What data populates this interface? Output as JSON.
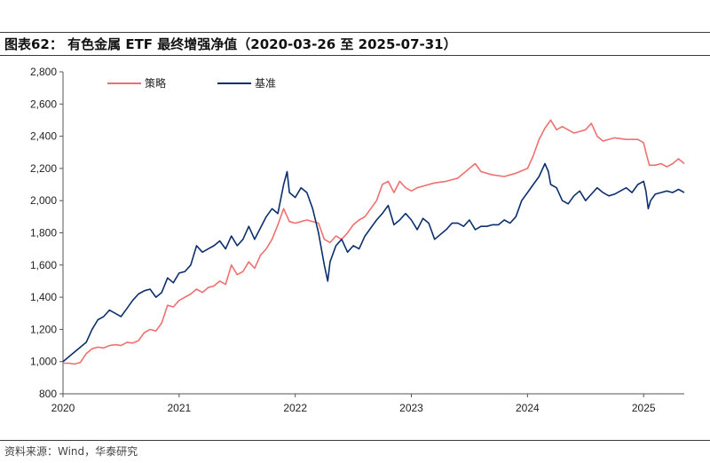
{
  "header": {
    "title": "图表62： 有色金属 ETF 最终增强净值（2020-03-26 至 2025-07-31）"
  },
  "footer": {
    "source": "资料来源：Wind，华泰研究"
  },
  "chart_data": {
    "type": "line",
    "title": "有色金属 ETF 最终增强净值（2020-03-26 至 2025-07-31）",
    "xlabel": "",
    "ylabel": "",
    "xlim": [
      2020.0,
      2025.35
    ],
    "ylim": [
      800,
      2800
    ],
    "y_ticks": [
      "800",
      "1,000",
      "1,200",
      "1,400",
      "1,600",
      "1,800",
      "2,000",
      "2,200",
      "2,400",
      "2,600",
      "2,800"
    ],
    "y_tick_values": [
      800,
      1000,
      1200,
      1400,
      1600,
      1800,
      2000,
      2200,
      2400,
      2600,
      2800
    ],
    "x_ticks": [
      "2020",
      "2021",
      "2022",
      "2023",
      "2024",
      "2025"
    ],
    "x_tick_values": [
      2020,
      2021,
      2022,
      2023,
      2024,
      2025
    ],
    "legend_position": "top-left",
    "colors": {
      "strategy": "#F07070",
      "benchmark": "#0B2F6E",
      "axis": "#555555"
    },
    "series": [
      {
        "name": "策略",
        "color": "#F07070",
        "points": [
          [
            2020.0,
            990
          ],
          [
            2020.05,
            990
          ],
          [
            2020.1,
            985
          ],
          [
            2020.15,
            995
          ],
          [
            2020.2,
            1050
          ],
          [
            2020.25,
            1080
          ],
          [
            2020.3,
            1090
          ],
          [
            2020.35,
            1085
          ],
          [
            2020.4,
            1100
          ],
          [
            2020.45,
            1105
          ],
          [
            2020.5,
            1100
          ],
          [
            2020.55,
            1120
          ],
          [
            2020.6,
            1115
          ],
          [
            2020.65,
            1130
          ],
          [
            2020.7,
            1180
          ],
          [
            2020.75,
            1200
          ],
          [
            2020.8,
            1190
          ],
          [
            2020.85,
            1240
          ],
          [
            2020.9,
            1350
          ],
          [
            2020.95,
            1340
          ],
          [
            2021.0,
            1380
          ],
          [
            2021.05,
            1400
          ],
          [
            2021.1,
            1420
          ],
          [
            2021.15,
            1450
          ],
          [
            2021.2,
            1430
          ],
          [
            2021.25,
            1460
          ],
          [
            2021.3,
            1470
          ],
          [
            2021.35,
            1500
          ],
          [
            2021.4,
            1480
          ],
          [
            2021.45,
            1600
          ],
          [
            2021.5,
            1540
          ],
          [
            2021.55,
            1560
          ],
          [
            2021.6,
            1620
          ],
          [
            2021.65,
            1580
          ],
          [
            2021.7,
            1660
          ],
          [
            2021.75,
            1700
          ],
          [
            2021.8,
            1760
          ],
          [
            2021.85,
            1850
          ],
          [
            2021.9,
            1950
          ],
          [
            2021.95,
            1870
          ],
          [
            2022.0,
            1860
          ],
          [
            2022.05,
            1870
          ],
          [
            2022.1,
            1880
          ],
          [
            2022.15,
            1870
          ],
          [
            2022.2,
            1860
          ],
          [
            2022.25,
            1760
          ],
          [
            2022.3,
            1740
          ],
          [
            2022.35,
            1780
          ],
          [
            2022.4,
            1760
          ],
          [
            2022.45,
            1800
          ],
          [
            2022.5,
            1850
          ],
          [
            2022.55,
            1880
          ],
          [
            2022.6,
            1900
          ],
          [
            2022.65,
            1950
          ],
          [
            2022.7,
            2000
          ],
          [
            2022.75,
            2100
          ],
          [
            2022.8,
            2120
          ],
          [
            2022.85,
            2050
          ],
          [
            2022.9,
            2120
          ],
          [
            2022.95,
            2080
          ],
          [
            2023.0,
            2060
          ],
          [
            2023.05,
            2080
          ],
          [
            2023.1,
            2090
          ],
          [
            2023.2,
            2110
          ],
          [
            2023.3,
            2120
          ],
          [
            2023.4,
            2140
          ],
          [
            2023.5,
            2200
          ],
          [
            2023.55,
            2230
          ],
          [
            2023.6,
            2180
          ],
          [
            2023.7,
            2160
          ],
          [
            2023.8,
            2150
          ],
          [
            2023.9,
            2170
          ],
          [
            2024.0,
            2200
          ],
          [
            2024.05,
            2280
          ],
          [
            2024.1,
            2380
          ],
          [
            2024.15,
            2450
          ],
          [
            2024.2,
            2500
          ],
          [
            2024.25,
            2440
          ],
          [
            2024.3,
            2460
          ],
          [
            2024.4,
            2420
          ],
          [
            2024.5,
            2440
          ],
          [
            2024.55,
            2480
          ],
          [
            2024.6,
            2400
          ],
          [
            2024.65,
            2370
          ],
          [
            2024.75,
            2390
          ],
          [
            2024.85,
            2380
          ],
          [
            2024.95,
            2380
          ],
          [
            2025.0,
            2360
          ],
          [
            2025.02,
            2300
          ],
          [
            2025.05,
            2220
          ],
          [
            2025.1,
            2220
          ],
          [
            2025.15,
            2230
          ],
          [
            2025.2,
            2210
          ],
          [
            2025.25,
            2230
          ],
          [
            2025.3,
            2260
          ],
          [
            2025.35,
            2230
          ]
        ]
      },
      {
        "name": "基准",
        "color": "#0B2F6E",
        "points": [
          [
            2020.0,
            1000
          ],
          [
            2020.05,
            1030
          ],
          [
            2020.1,
            1060
          ],
          [
            2020.15,
            1090
          ],
          [
            2020.2,
            1120
          ],
          [
            2020.25,
            1200
          ],
          [
            2020.3,
            1260
          ],
          [
            2020.35,
            1280
          ],
          [
            2020.4,
            1320
          ],
          [
            2020.45,
            1300
          ],
          [
            2020.5,
            1280
          ],
          [
            2020.55,
            1330
          ],
          [
            2020.6,
            1380
          ],
          [
            2020.65,
            1420
          ],
          [
            2020.7,
            1440
          ],
          [
            2020.75,
            1450
          ],
          [
            2020.8,
            1400
          ],
          [
            2020.85,
            1430
          ],
          [
            2020.9,
            1520
          ],
          [
            2020.95,
            1490
          ],
          [
            2021.0,
            1550
          ],
          [
            2021.05,
            1560
          ],
          [
            2021.1,
            1600
          ],
          [
            2021.15,
            1720
          ],
          [
            2021.2,
            1680
          ],
          [
            2021.25,
            1700
          ],
          [
            2021.3,
            1720
          ],
          [
            2021.35,
            1750
          ],
          [
            2021.4,
            1700
          ],
          [
            2021.45,
            1780
          ],
          [
            2021.5,
            1720
          ],
          [
            2021.55,
            1760
          ],
          [
            2021.6,
            1840
          ],
          [
            2021.65,
            1760
          ],
          [
            2021.7,
            1830
          ],
          [
            2021.75,
            1900
          ],
          [
            2021.8,
            1950
          ],
          [
            2021.85,
            1920
          ],
          [
            2021.9,
            2100
          ],
          [
            2021.93,
            2180
          ],
          [
            2021.95,
            2050
          ],
          [
            2022.0,
            2020
          ],
          [
            2022.05,
            2080
          ],
          [
            2022.1,
            2050
          ],
          [
            2022.15,
            1950
          ],
          [
            2022.2,
            1800
          ],
          [
            2022.25,
            1600
          ],
          [
            2022.28,
            1500
          ],
          [
            2022.3,
            1620
          ],
          [
            2022.35,
            1720
          ],
          [
            2022.4,
            1760
          ],
          [
            2022.45,
            1680
          ],
          [
            2022.5,
            1720
          ],
          [
            2022.55,
            1700
          ],
          [
            2022.6,
            1780
          ],
          [
            2022.65,
            1830
          ],
          [
            2022.7,
            1880
          ],
          [
            2022.75,
            1920
          ],
          [
            2022.8,
            1970
          ],
          [
            2022.85,
            1850
          ],
          [
            2022.9,
            1880
          ],
          [
            2022.95,
            1920
          ],
          [
            2023.0,
            1880
          ],
          [
            2023.05,
            1820
          ],
          [
            2023.1,
            1890
          ],
          [
            2023.15,
            1860
          ],
          [
            2023.2,
            1760
          ],
          [
            2023.25,
            1790
          ],
          [
            2023.3,
            1820
          ],
          [
            2023.35,
            1860
          ],
          [
            2023.4,
            1860
          ],
          [
            2023.45,
            1840
          ],
          [
            2023.5,
            1880
          ],
          [
            2023.55,
            1820
          ],
          [
            2023.6,
            1840
          ],
          [
            2023.65,
            1840
          ],
          [
            2023.7,
            1850
          ],
          [
            2023.75,
            1850
          ],
          [
            2023.8,
            1880
          ],
          [
            2023.85,
            1860
          ],
          [
            2023.9,
            1900
          ],
          [
            2023.95,
            2000
          ],
          [
            2024.0,
            2050
          ],
          [
            2024.05,
            2100
          ],
          [
            2024.1,
            2150
          ],
          [
            2024.15,
            2230
          ],
          [
            2024.18,
            2180
          ],
          [
            2024.2,
            2100
          ],
          [
            2024.25,
            2080
          ],
          [
            2024.3,
            2000
          ],
          [
            2024.35,
            1980
          ],
          [
            2024.4,
            2030
          ],
          [
            2024.45,
            2060
          ],
          [
            2024.5,
            2000
          ],
          [
            2024.55,
            2040
          ],
          [
            2024.6,
            2080
          ],
          [
            2024.65,
            2050
          ],
          [
            2024.7,
            2030
          ],
          [
            2024.75,
            2040
          ],
          [
            2024.8,
            2060
          ],
          [
            2024.85,
            2080
          ],
          [
            2024.9,
            2050
          ],
          [
            2024.95,
            2100
          ],
          [
            2025.0,
            2120
          ],
          [
            2025.02,
            2060
          ],
          [
            2025.04,
            1950
          ],
          [
            2025.06,
            2000
          ],
          [
            2025.1,
            2040
          ],
          [
            2025.15,
            2050
          ],
          [
            2025.2,
            2060
          ],
          [
            2025.25,
            2050
          ],
          [
            2025.3,
            2070
          ],
          [
            2025.35,
            2050
          ]
        ]
      }
    ]
  }
}
